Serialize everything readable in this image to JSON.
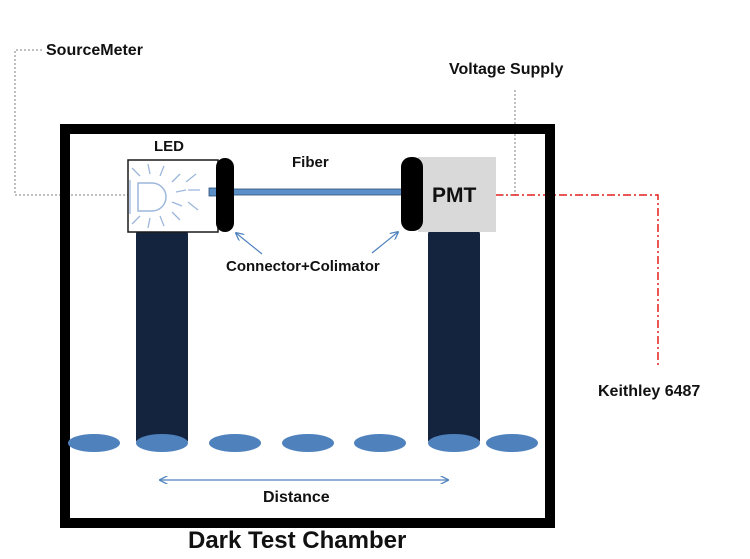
{
  "title": "Dark Test Chamber",
  "labels": {
    "sourcemeter": "SourceMeter",
    "voltage_supply": "Voltage Supply",
    "led": "LED",
    "fiber": "Fiber",
    "pmt": "PMT",
    "connector": "Connector+Colimator",
    "keithley": "Keithley 6487",
    "distance": "Distance"
  },
  "colors": {
    "chamber_border": "#000000",
    "post": "#14243f",
    "fiber": "#5b8fc7",
    "pmt_box": "#d9d9d9",
    "ellipse": "#4f81bd",
    "signal_line": "#e0201b",
    "connector": "#000000"
  }
}
